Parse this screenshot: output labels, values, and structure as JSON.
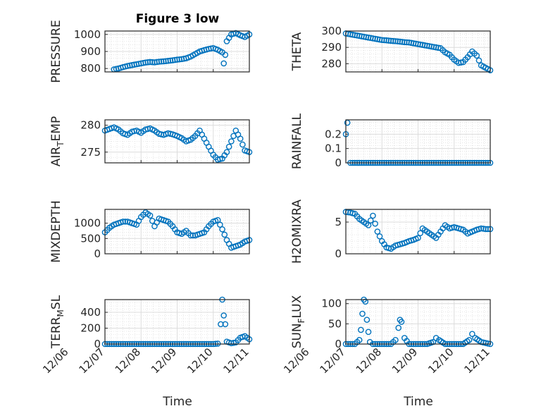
{
  "figure": {
    "title": "Figure 3 low",
    "xlabel": "Time",
    "x_tick_labels": [
      "12/06",
      "12/07",
      "12/08",
      "12/09",
      "12/10",
      "12/11"
    ]
  },
  "chart_data": [
    {
      "type": "scatter",
      "panel": "left-1",
      "ylabel": "PRESSURE",
      "ylabel_sub": "",
      "ylim": [
        780,
        1020
      ],
      "yticks": [
        800,
        900,
        1000
      ],
      "x": [
        "12/07 06:00",
        "12/07 09:00",
        "12/07 12:00",
        "12/07 15:00",
        "12/07 18:00",
        "12/07 21:00",
        "12/08 00:00",
        "12/08 03:00",
        "12/08 06:00",
        "12/08 09:00",
        "12/08 12:00",
        "12/08 15:00",
        "12/08 18:00",
        "12/08 21:00",
        "12/09 00:00",
        "12/09 03:00",
        "12/09 06:00",
        "12/09 09:00",
        "12/09 12:00",
        "12/09 15:00",
        "12/09 18:00",
        "12/09 21:00",
        "12/10 00:00",
        "12/10 03:00",
        "12/10 06:00",
        "12/10 07:00",
        "12/10 08:00",
        "12/10 09:00",
        "12/10 12:00",
        "12/10 15:00",
        "12/10 18:00",
        "12/10 21:00",
        "12/11 00:00"
      ],
      "y": [
        795,
        800,
        808,
        815,
        820,
        825,
        830,
        835,
        838,
        836,
        840,
        842,
        845,
        848,
        852,
        855,
        860,
        870,
        885,
        900,
        908,
        915,
        920,
        910,
        895,
        830,
        880,
        960,
        1000,
        1008,
        995,
        985,
        1000
      ]
    },
    {
      "type": "scatter",
      "panel": "right-1",
      "ylabel": "THETA",
      "ylabel_sub": "",
      "ylim": [
        275,
        300
      ],
      "yticks": [
        280,
        290,
        300
      ],
      "x": [
        "12/07 00:00",
        "12/07 03:00",
        "12/07 06:00",
        "12/07 09:00",
        "12/07 12:00",
        "12/07 15:00",
        "12/07 18:00",
        "12/07 21:00",
        "12/08 00:00",
        "12/08 03:00",
        "12/08 06:00",
        "12/08 09:00",
        "12/08 12:00",
        "12/08 15:00",
        "12/08 18:00",
        "12/08 21:00",
        "12/09 00:00",
        "12/09 03:00",
        "12/09 06:00",
        "12/09 09:00",
        "12/09 12:00",
        "12/09 15:00",
        "12/09 18:00",
        "12/09 21:00",
        "12/10 00:00",
        "12/10 03:00",
        "12/10 06:00",
        "12/10 09:00",
        "12/10 12:00",
        "12/10 15:00",
        "12/10 18:00",
        "12/10 21:00",
        "12/11 00:00"
      ],
      "y": [
        298.5,
        298,
        297.5,
        297,
        296.5,
        296,
        295.5,
        295,
        294.5,
        294.3,
        294,
        293.8,
        293.5,
        293.2,
        293,
        292.5,
        292,
        291.5,
        291,
        290.5,
        290,
        289.5,
        287,
        285.5,
        282.5,
        280.5,
        281,
        284,
        287.5,
        285,
        279,
        277.5,
        276
      ]
    },
    {
      "type": "scatter",
      "panel": "left-2",
      "ylabel": "AIR",
      "ylabel_sub": "T",
      "ylabel_rest": "EMP",
      "ylim": [
        273,
        281
      ],
      "yticks": [
        275,
        280
      ],
      "x": [
        "12/07 00:00",
        "12/07 03:00",
        "12/07 06:00",
        "12/07 09:00",
        "12/07 12:00",
        "12/07 15:00",
        "12/07 18:00",
        "12/07 21:00",
        "12/08 00:00",
        "12/08 03:00",
        "12/08 06:00",
        "12/08 09:00",
        "12/08 12:00",
        "12/08 15:00",
        "12/08 18:00",
        "12/08 21:00",
        "12/09 00:00",
        "12/09 03:00",
        "12/09 06:00",
        "12/09 09:00",
        "12/09 12:00",
        "12/09 15:00",
        "12/09 18:00",
        "12/09 21:00",
        "12/10 00:00",
        "12/10 03:00",
        "12/10 06:00",
        "12/10 09:00",
        "12/10 12:00",
        "12/10 15:00",
        "12/10 18:00",
        "12/10 21:00",
        "12/11 00:00"
      ],
      "y": [
        279,
        279.3,
        279.6,
        279.2,
        278.5,
        278.2,
        278.8,
        279,
        278.6,
        279.2,
        279.4,
        279,
        278.4,
        278.2,
        278.5,
        278.3,
        278,
        277.6,
        277,
        277.3,
        278,
        279,
        277.5,
        276,
        274.5,
        273.6,
        273.8,
        275,
        277,
        279,
        277.5,
        275.3,
        275
      ]
    },
    {
      "type": "scatter",
      "panel": "right-2",
      "ylabel": "RAINFALL",
      "ylabel_sub": "",
      "ylim": [
        0,
        0.3
      ],
      "yticks": [
        0,
        0.1,
        0.2
      ],
      "ytick_labels": [
        "0",
        "0.1",
        "0.2"
      ],
      "x": [
        "12/07 00:00",
        "12/07 01:00",
        "12/07 03:00",
        "12/07 06:00",
        "12/07 12:00",
        "12/07 18:00",
        "12/08 00:00",
        "12/08 06:00",
        "12/08 12:00",
        "12/08 18:00",
        "12/09 00:00",
        "12/09 06:00",
        "12/09 12:00",
        "12/09 18:00",
        "12/10 00:00",
        "12/10 06:00",
        "12/10 12:00",
        "12/10 18:00",
        "12/11 00:00"
      ],
      "y": [
        0.2,
        0.28,
        0,
        0,
        0,
        0,
        0,
        0,
        0,
        0,
        0,
        0,
        0,
        0,
        0,
        0,
        0,
        0,
        0
      ]
    },
    {
      "type": "scatter",
      "panel": "left-3",
      "ylabel": "MIXDEPTH",
      "ylabel_sub": "",
      "ylim": [
        0,
        1450
      ],
      "yticks": [
        0,
        500,
        1000
      ],
      "x": [
        "12/07 00:00",
        "12/07 03:00",
        "12/07 06:00",
        "12/07 09:00",
        "12/07 12:00",
        "12/07 15:00",
        "12/07 18:00",
        "12/07 21:00",
        "12/08 00:00",
        "12/08 03:00",
        "12/08 06:00",
        "12/08 09:00",
        "12/08 12:00",
        "12/08 15:00",
        "12/08 18:00",
        "12/08 21:00",
        "12/09 00:00",
        "12/09 03:00",
        "12/09 06:00",
        "12/09 09:00",
        "12/09 12:00",
        "12/09 15:00",
        "12/09 18:00",
        "12/09 21:00",
        "12/10 00:00",
        "12/10 03:00",
        "12/10 06:00",
        "12/10 09:00",
        "12/10 12:00",
        "12/10 15:00",
        "12/10 18:00",
        "12/10 21:00",
        "12/11 00:00"
      ],
      "y": [
        700,
        850,
        950,
        1000,
        1050,
        1050,
        1000,
        950,
        1200,
        1350,
        1250,
        900,
        1150,
        1100,
        1050,
        900,
        700,
        650,
        750,
        600,
        600,
        650,
        700,
        900,
        1050,
        1100,
        800,
        450,
        200,
        250,
        300,
        400,
        450
      ]
    },
    {
      "type": "scatter",
      "panel": "right-3",
      "ylabel": "H2OMIXRA",
      "ylabel_sub": "",
      "ylim": [
        0,
        7
      ],
      "yticks": [
        0,
        5
      ],
      "x": [
        "12/07 00:00",
        "12/07 03:00",
        "12/07 06:00",
        "12/07 09:00",
        "12/07 12:00",
        "12/07 15:00",
        "12/07 18:00",
        "12/07 21:00",
        "12/08 00:00",
        "12/08 03:00",
        "12/08 06:00",
        "12/08 09:00",
        "12/08 12:00",
        "12/08 15:00",
        "12/08 18:00",
        "12/08 21:00",
        "12/09 00:00",
        "12/09 03:00",
        "12/09 06:00",
        "12/09 09:00",
        "12/09 12:00",
        "12/09 15:00",
        "12/09 18:00",
        "12/09 21:00",
        "12/10 00:00",
        "12/10 03:00",
        "12/10 06:00",
        "12/10 09:00",
        "12/10 12:00",
        "12/10 15:00",
        "12/10 18:00",
        "12/10 21:00",
        "12/11 00:00"
      ],
      "y": [
        6.6,
        6.5,
        6.3,
        5.5,
        5,
        4.5,
        6,
        3.5,
        2,
        1,
        0.8,
        1.3,
        1.5,
        1.7,
        2,
        2.2,
        2.5,
        4,
        3.5,
        3,
        2.5,
        3.5,
        4.5,
        4,
        4.2,
        4,
        3.8,
        3.2,
        3.5,
        3.8,
        4,
        3.9,
        3.9
      ]
    },
    {
      "type": "scatter",
      "panel": "left-4",
      "ylabel": "TERR",
      "ylabel_sub": "M",
      "ylabel_rest": "SL",
      "ylim": [
        0,
        560
      ],
      "yticks": [
        0,
        200,
        400
      ],
      "x": [
        "12/07 00:00",
        "12/07 06:00",
        "12/07 12:00",
        "12/07 18:00",
        "12/08 00:00",
        "12/08 06:00",
        "12/08 12:00",
        "12/08 18:00",
        "12/09 00:00",
        "12/09 06:00",
        "12/09 12:00",
        "12/09 18:00",
        "12/10 00:00",
        "12/10 03:00",
        "12/10 05:00",
        "12/10 06:00",
        "12/10 07:00",
        "12/10 08:00",
        "12/10 09:00",
        "12/10 12:00",
        "12/10 15:00",
        "12/10 18:00",
        "12/10 21:00",
        "12/11 00:00"
      ],
      "y": [
        0,
        0,
        0,
        0,
        0,
        0,
        0,
        0,
        0,
        0,
        0,
        0,
        0,
        5,
        250,
        560,
        360,
        250,
        30,
        10,
        20,
        80,
        100,
        60
      ]
    },
    {
      "type": "scatter",
      "panel": "right-4",
      "ylabel": "SUN",
      "ylabel_sub": "F",
      "ylabel_rest": "LUX",
      "ylim": [
        0,
        110
      ],
      "yticks": [
        0,
        50,
        100
      ],
      "x": [
        "12/07 00:00",
        "12/07 06:00",
        "12/07 09:00",
        "12/07 10:00",
        "12/07 11:00",
        "12/07 12:00",
        "12/07 13:00",
        "12/07 14:00",
        "12/07 15:00",
        "12/07 16:00",
        "12/07 18:00",
        "12/08 00:00",
        "12/08 06:00",
        "12/08 09:00",
        "12/08 11:00",
        "12/08 12:00",
        "12/08 13:00",
        "12/08 15:00",
        "12/08 18:00",
        "12/09 00:00",
        "12/09 06:00",
        "12/09 10:00",
        "12/09 12:00",
        "12/09 14:00",
        "12/09 18:00",
        "12/10 00:00",
        "12/10 06:00",
        "12/10 10:00",
        "12/10 12:00",
        "12/10 14:00",
        "12/10 18:00",
        "12/11 00:00"
      ],
      "y": [
        0,
        0,
        10,
        35,
        75,
        110,
        105,
        60,
        30,
        5,
        0,
        0,
        0,
        10,
        40,
        60,
        55,
        15,
        0,
        0,
        0,
        5,
        15,
        10,
        0,
        0,
        0,
        10,
        25,
        15,
        5,
        0
      ]
    }
  ]
}
